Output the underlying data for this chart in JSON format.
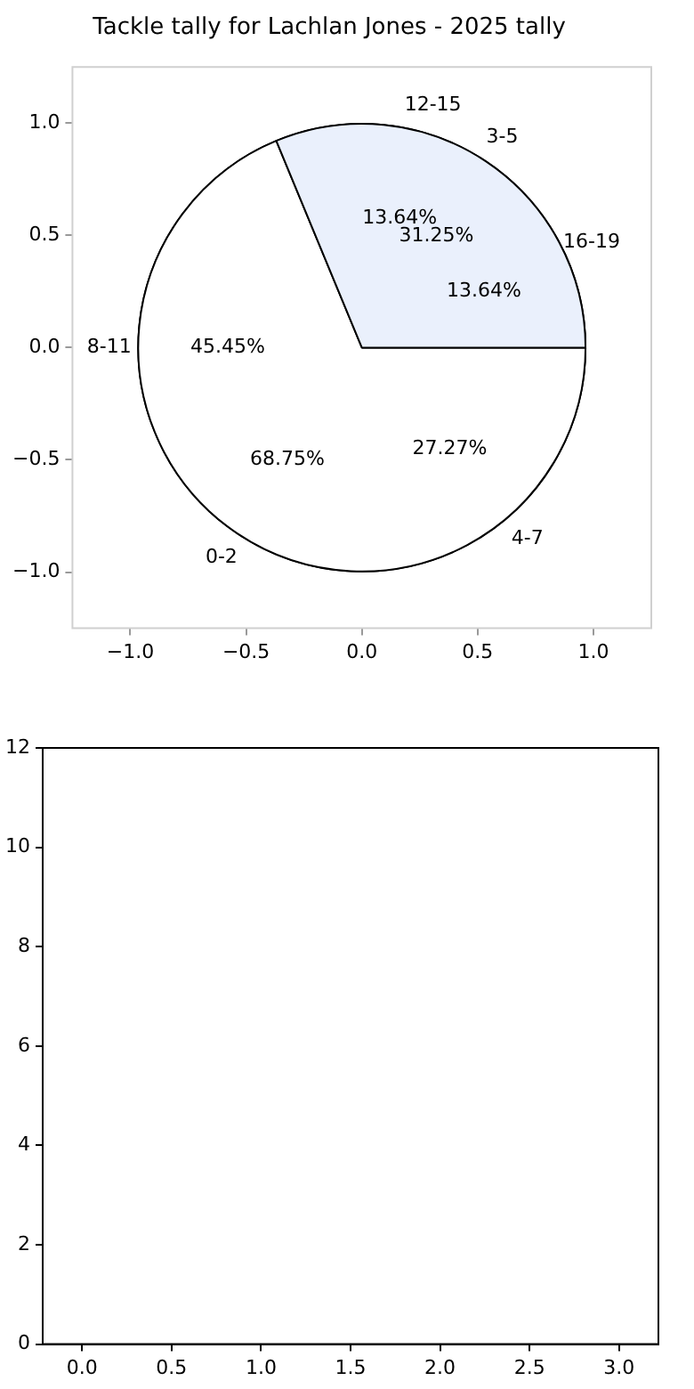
{
  "chart_data": [
    {
      "type": "scatter",
      "title": "Tackle tally for Lachlan Jones - 2025 tally",
      "xlim": [
        -1.25,
        1.25
      ],
      "ylim": [
        -1.25,
        1.25
      ],
      "xticks": [
        {
          "value": -1,
          "label": "−1.0"
        },
        {
          "value": -0.5,
          "label": "−0.5"
        },
        {
          "value": 0,
          "label": "0.0"
        },
        {
          "value": 0.5,
          "label": "0.5"
        },
        {
          "value": 1,
          "label": "1.0"
        }
      ],
      "yticks": [
        {
          "value": -1,
          "label": "−1.0"
        },
        {
          "value": -0.5,
          "label": "−0.5"
        },
        {
          "value": 0,
          "label": "0.0"
        },
        {
          "value": 0.5,
          "label": "0.5"
        },
        {
          "value": 1,
          "label": "1.0"
        }
      ]
    },
    {
      "type": "pie",
      "categories": [
        "0-2",
        "3-5"
      ],
      "values": [
        68.75,
        31.25
      ],
      "colors": [
        "#ffffff",
        "#eaf0fc"
      ],
      "value_labels": [
        "68.75%",
        "31.25%"
      ]
    },
    {
      "type": "pie",
      "categories": [
        "4-7",
        "8-11",
        "12-15",
        "16-19"
      ],
      "values": [
        27.27,
        45.45,
        13.64,
        13.64
      ],
      "colors": [
        "#ffffff",
        "#ffffff",
        "#ffffff",
        "#ffffff"
      ],
      "value_labels": [
        "27.27%",
        "45.45%",
        "13.64%",
        "13.64%"
      ]
    },
    {
      "type": "scatter",
      "xlim": [
        -0.22,
        3.22
      ],
      "ylim": [
        0,
        12
      ],
      "xticks": [
        {
          "value": 0,
          "label": "0.0"
        },
        {
          "value": 0.5,
          "label": "0.5"
        },
        {
          "value": 1,
          "label": "1.0"
        },
        {
          "value": 1.5,
          "label": "1.5"
        },
        {
          "value": 2,
          "label": "2.0"
        },
        {
          "value": 2.5,
          "label": "2.5"
        },
        {
          "value": 3,
          "label": "3.0"
        }
      ],
      "yticks": [
        0,
        2,
        4,
        6,
        8,
        10,
        12
      ]
    }
  ]
}
